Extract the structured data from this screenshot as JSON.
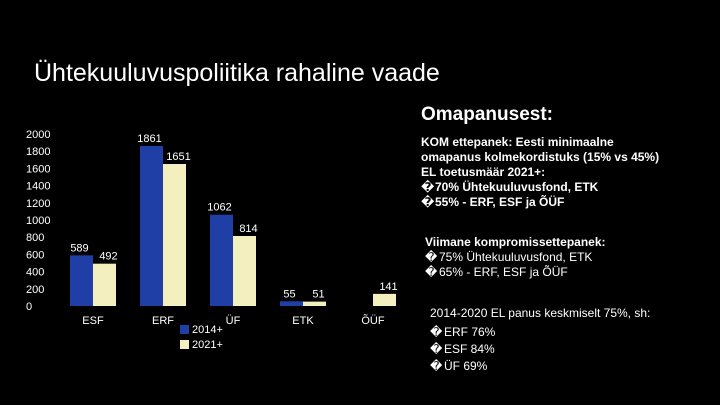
{
  "slide": {
    "title": "Ühtekuuluvuspoliitika rahaline vaade",
    "right_heading": "Omapanusest:"
  },
  "block1": {
    "lines": [
      "KOM ettepanek: Eesti minimaalne",
      "omapanus kolmekordistuks (15% vs 45%)",
      "EL toetusmäär 2021+:"
    ],
    "bullets": [
      "70% Ühtekuuluvusfond, ETK",
      "55% - ERF, ESF ja ÕÜF"
    ],
    "bullet_glyph": "�"
  },
  "block2": {
    "heading": "Viimane kompromissettepanek:",
    "bullets": [
      "75% Ühtekuuluvusfond, ETK",
      "65% - ERF, ESF ja ÕÜF"
    ],
    "bullet_glyph": "�"
  },
  "block3": {
    "heading": "2014-2020 EL panus keskmiselt 75%, sh:",
    "bullets": [
      "ERF 76%",
      "ESF 84%",
      "ÜF 69%"
    ],
    "bullet_glyph": "�"
  },
  "chart_data": {
    "type": "bar",
    "categories": [
      "ESF",
      "ERF",
      "ÜF",
      "ETK",
      "ÕÜF"
    ],
    "series": [
      {
        "name": "2014+",
        "values": [
          589,
          1861,
          1062,
          55,
          null
        ],
        "color": "#1f3ea6"
      },
      {
        "name": "2021+",
        "values": [
          492,
          1651,
          814,
          51,
          141
        ],
        "color": "#f4efbf"
      }
    ],
    "y_ticks": [
      "0",
      "200",
      "400",
      "600",
      "800",
      "1000",
      "1200",
      "1400",
      "1600",
      "1800",
      "2000"
    ],
    "ylim": [
      0,
      2000
    ],
    "grid": false,
    "legend_position": "bottom"
  }
}
